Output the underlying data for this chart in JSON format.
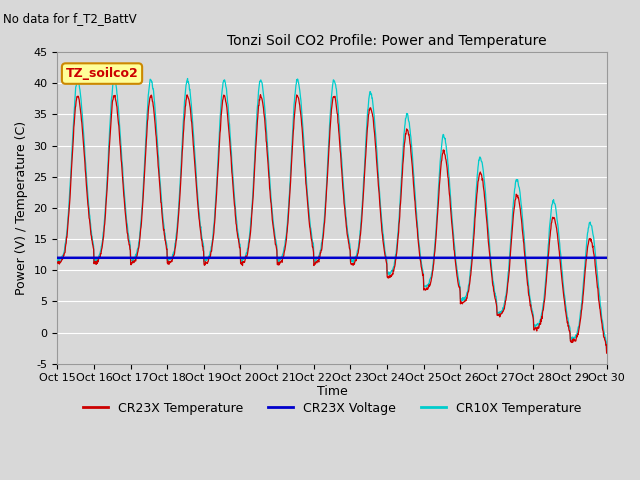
{
  "title": "Tonzi Soil CO2 Profile: Power and Temperature",
  "subtitle": "No data for f_T2_BattV",
  "ylabel": "Power (V) / Temperature (C)",
  "xlabel": "Time",
  "ylim": [
    -5,
    45
  ],
  "yticks": [
    -5,
    0,
    5,
    10,
    15,
    20,
    25,
    30,
    35,
    40,
    45
  ],
  "xtick_labels": [
    "Oct 15",
    "Oct 16",
    "Oct 17",
    "Oct 18",
    "Oct 19",
    "Oct 20",
    "Oct 21",
    "Oct 22",
    "Oct 23",
    "Oct 24",
    "Oct 25",
    "Oct 26",
    "Oct 27",
    "Oct 28",
    "Oct 29",
    "Oct 30"
  ],
  "legend_entries": [
    "CR23X Temperature",
    "CR23X Voltage",
    "CR10X Temperature"
  ],
  "cr23x_color": "#cc0000",
  "cr23x_voltage_color": "#0000cc",
  "cr10x_color": "#00cccc",
  "background_color": "#d8d8d8",
  "plot_bg_color": "#d8d8d8",
  "grid_color": "#ffffff",
  "annotation_text": "TZ_soilco2",
  "annotation_bg": "#ffff99",
  "annotation_border": "#cc8800",
  "n_days": 15,
  "points_per_day": 96,
  "voltage_level": 12.0,
  "title_fontsize": 10,
  "axis_fontsize": 8,
  "legend_fontsize": 9
}
